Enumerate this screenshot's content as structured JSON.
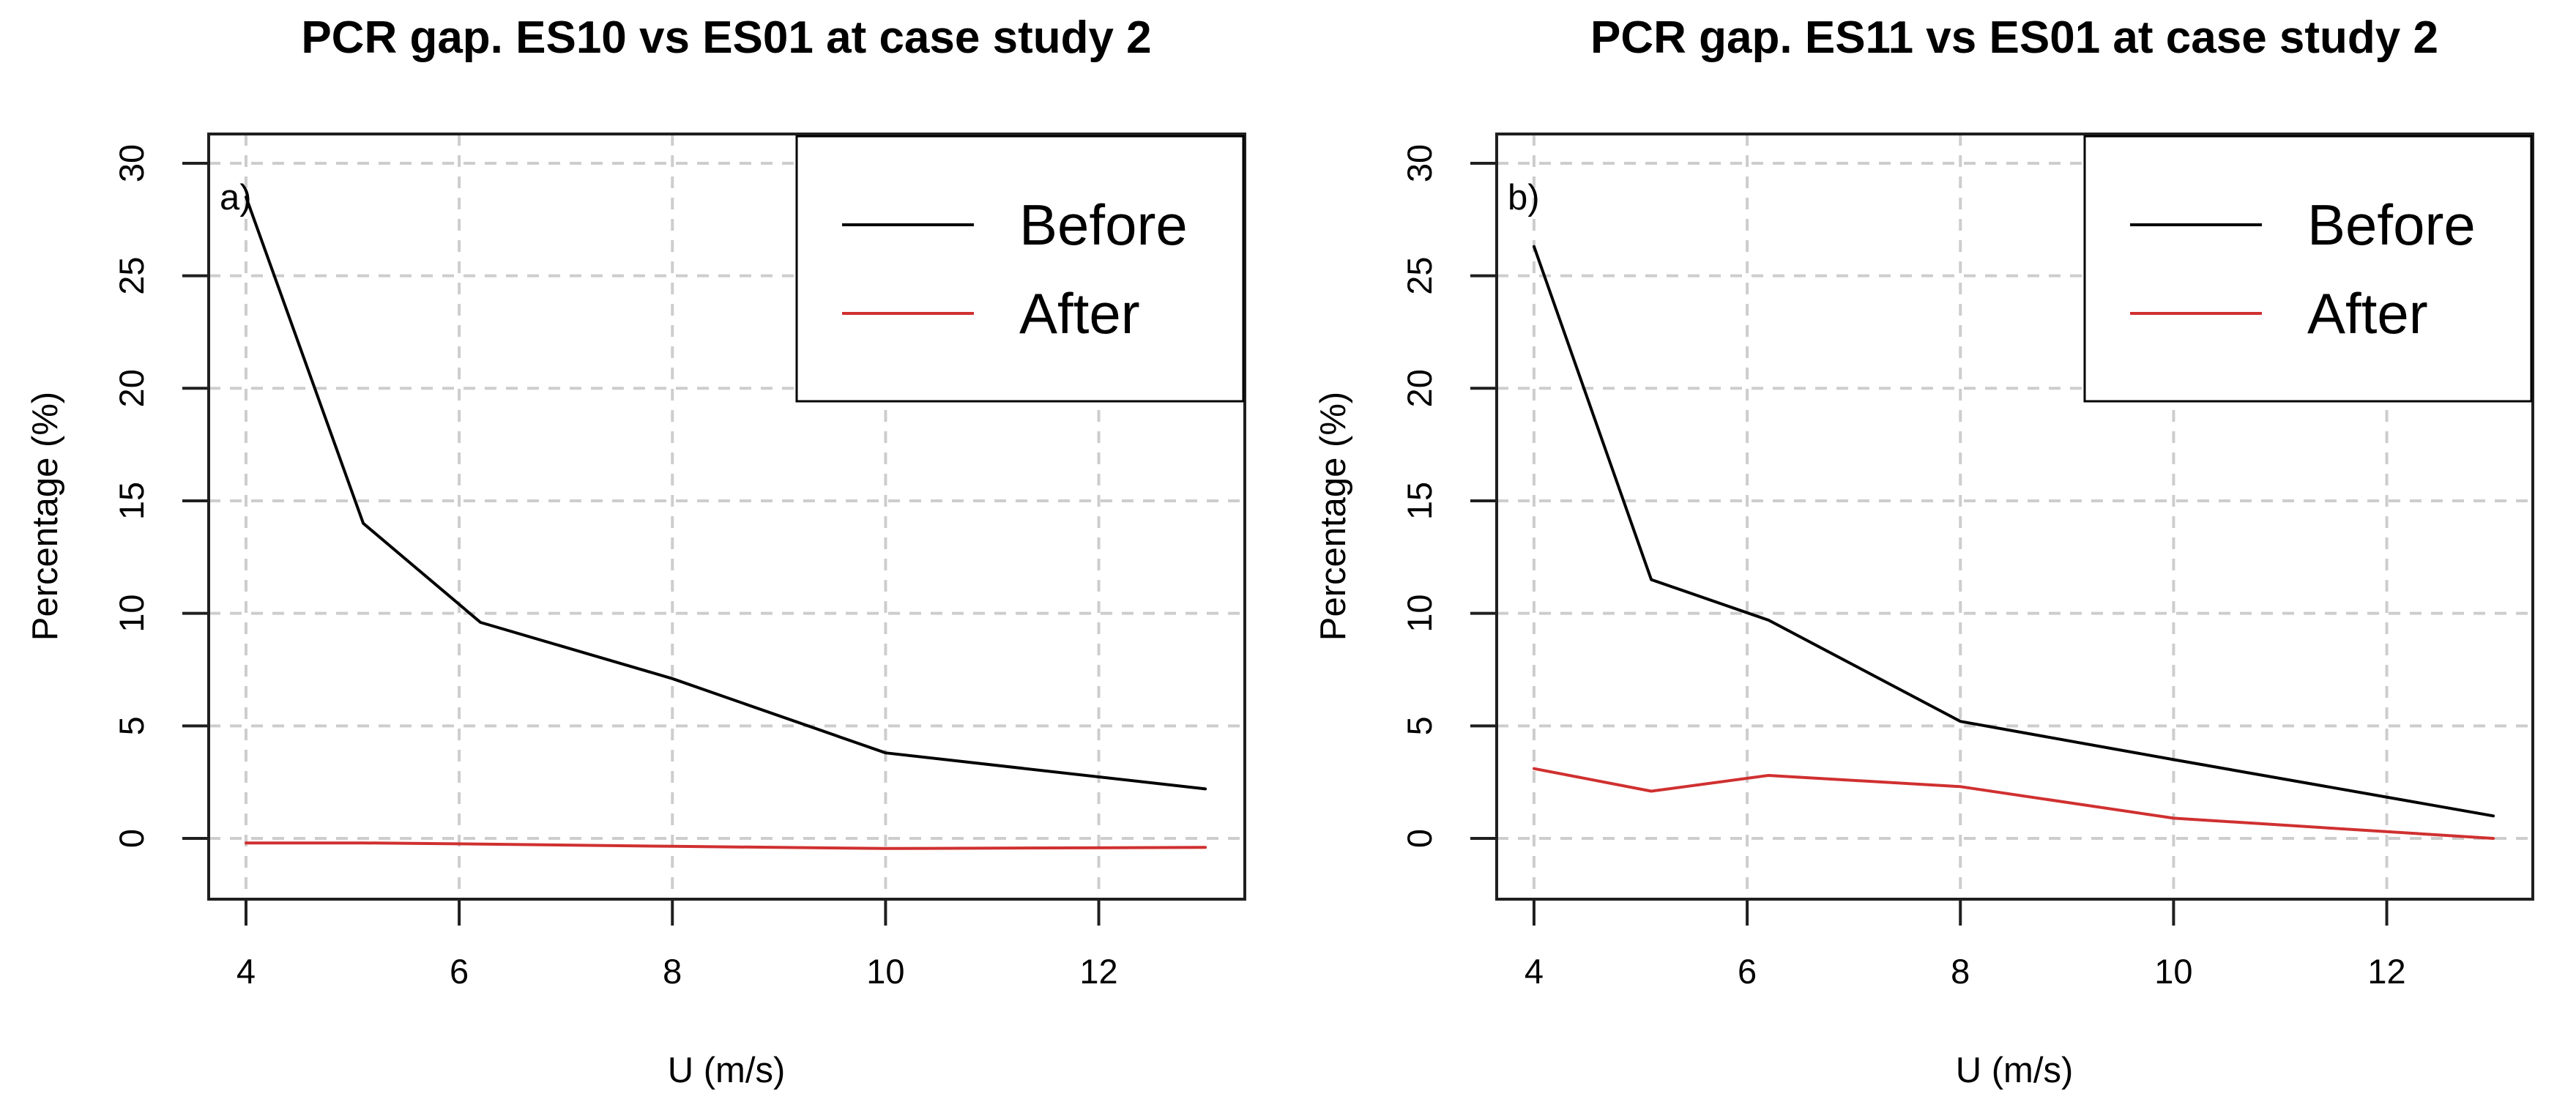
{
  "style": {
    "background": "#ffffff",
    "text_color": "#000000",
    "grid_color": "#cdcdcd",
    "axis_box_color": "#1f1f1f",
    "tick_color": "#1f1f1f",
    "legend_border_color": "#000000",
    "legend_fill": "#ffffff",
    "before_color": "#000000",
    "after_color": "#d03030"
  },
  "chart_data": [
    {
      "type": "line",
      "panel_label": "a)",
      "title": "PCR gap. ES10 vs ES01 at case study 2",
      "xlabel": "U (m/s)",
      "ylabel": "Percentage (%)",
      "x_ticks": [
        4,
        6,
        8,
        10,
        12
      ],
      "y_ticks": [
        0,
        5,
        10,
        15,
        20,
        25,
        30
      ],
      "xlim": [
        3.65,
        13.37
      ],
      "ylim": [
        -2.7,
        31.3
      ],
      "grid": true,
      "legend": {
        "position": "top-right",
        "entries": [
          "Before",
          "After"
        ]
      },
      "series": [
        {
          "name": "Before",
          "color": "#000000",
          "x": [
            4,
            5.1,
            6.2,
            8,
            10,
            13
          ],
          "y": [
            28.5,
            14.0,
            9.6,
            7.1,
            3.8,
            2.2
          ]
        },
        {
          "name": "After",
          "color": "#d03030",
          "x": [
            4,
            5.1,
            6.2,
            8,
            10,
            13
          ],
          "y": [
            -0.2,
            -0.2,
            -0.25,
            -0.35,
            -0.45,
            -0.4
          ]
        }
      ]
    },
    {
      "type": "line",
      "panel_label": "b)",
      "title": "PCR gap. ES11 vs ES01 at case study 2",
      "xlabel": "U (m/s)",
      "ylabel": "Percentage (%)",
      "x_ticks": [
        4,
        6,
        8,
        10,
        12
      ],
      "y_ticks": [
        0,
        5,
        10,
        15,
        20,
        25,
        30
      ],
      "xlim": [
        3.65,
        13.37
      ],
      "ylim": [
        -2.7,
        31.3
      ],
      "grid": true,
      "legend": {
        "position": "top-right",
        "entries": [
          "Before",
          "After"
        ]
      },
      "series": [
        {
          "name": "Before",
          "color": "#000000",
          "x": [
            4,
            5.1,
            6.2,
            8,
            10,
            13
          ],
          "y": [
            26.3,
            11.5,
            9.7,
            5.2,
            3.5,
            1.0
          ]
        },
        {
          "name": "After",
          "color": "#d03030",
          "x": [
            4,
            5.1,
            6.2,
            8,
            10,
            13
          ],
          "y": [
            3.1,
            2.1,
            2.8,
            2.3,
            0.9,
            0.0
          ]
        }
      ]
    }
  ]
}
